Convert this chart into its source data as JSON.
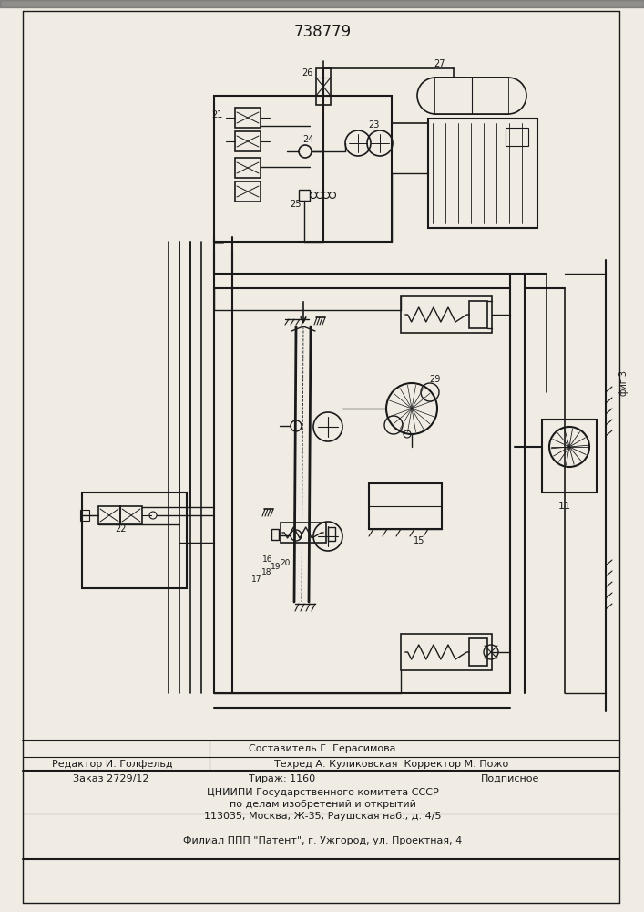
{
  "title": "738779",
  "bg_color": "#f0ece4",
  "lc": "#1a1a1a",
  "footer": {
    "line1": "Составитель Г. Герасимова",
    "line2_left": "Редактор И. Голфельд",
    "line2_right": "Техред А. Куликовская  Корректор М. Пожо",
    "order": "Заказ 2729/12",
    "circulation": "Тираж: 1160",
    "signed": "Подписное",
    "inst1": "ЦНИИПИ Государственного комитета СССР",
    "inst2": "по делам изобретений и открытий",
    "inst3": "113035, Москва, Ж-35, Раушская наб., д. 4/5",
    "patent": "Филиал ППП \"Патент\", г. Ужгород, ул. Проектная, 4"
  },
  "fig_label": "фиг.3"
}
